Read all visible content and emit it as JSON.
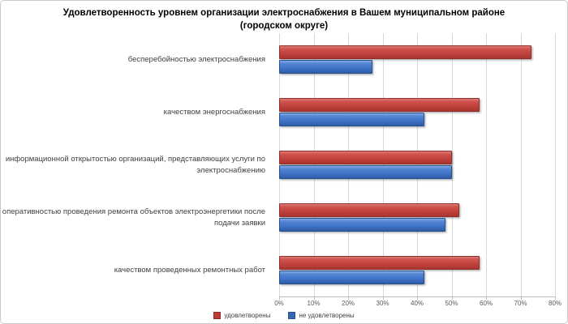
{
  "chart_data": {
    "type": "bar",
    "orientation": "horizontal",
    "title": "Удовлетворенность уровнем организации электроснабжения в Вашем муниципальном районе (городском округе)",
    "categories": [
      "бесперебойностью электроснабжения",
      "качеством энергоснабжения",
      "информационной открытостью организаций, представляющих услуги по электроснабжению",
      "оперативностью проведения ремонта объектов электроэнергетики после подачи заявки",
      "качеством проведенных ремонтных работ"
    ],
    "series": [
      {
        "name": "удовлетворены",
        "color": "#C2413C",
        "values": [
          73,
          58,
          50,
          52,
          58
        ]
      },
      {
        "name": "не удовлетворены",
        "color": "#3F74C9",
        "values": [
          27,
          42,
          50,
          48,
          42
        ]
      }
    ],
    "xlim": [
      0,
      80
    ],
    "x_ticks": [
      "0%",
      "10%",
      "20%",
      "30%",
      "40%",
      "50%",
      "60%",
      "70%",
      "80%"
    ],
    "xlabel": "",
    "ylabel": "",
    "grid": "vertical",
    "legend_position": "bottom",
    "colors": {
      "grid": "#D9D9D9",
      "axis": "#BFBFBF",
      "label_text": "#3F3F3F",
      "tick_text": "#595959"
    }
  }
}
